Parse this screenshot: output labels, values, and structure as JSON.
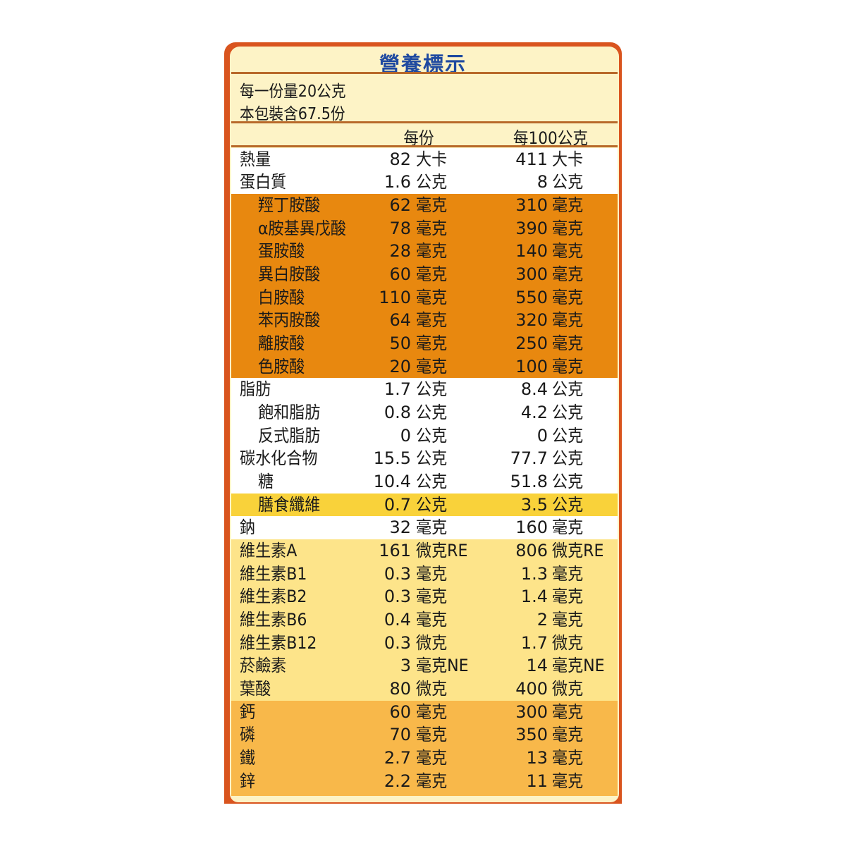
{
  "title": "營養標示",
  "serving_size": "每一份量20公克",
  "servings_per_package": "本包裝含67.5份",
  "columns": {
    "per_serving": "每份",
    "per_100g": "每100公克"
  },
  "colors": {
    "frame": "#d9541e",
    "background": "#fdf3c6",
    "title": "#1f4aa0",
    "amino_band": "#e8880f",
    "fiber_band": "#f9d23a",
    "vitamin_band": "#fde48a",
    "mineral_band": "#f8b84a",
    "white_band": "#ffffff"
  },
  "rows": [
    {
      "name": "熱量",
      "indent": false,
      "per_serving": "82",
      "unit1": "大卡",
      "per_100g": "411",
      "unit2": "大卡"
    },
    {
      "name": "蛋白質",
      "indent": false,
      "per_serving": "1.6",
      "unit1": "公克",
      "per_100g": "8",
      "unit2": "公克"
    },
    {
      "name": "羥丁胺酸",
      "indent": true,
      "per_serving": "62",
      "unit1": "毫克",
      "per_100g": "310",
      "unit2": "毫克"
    },
    {
      "name": "α胺基異戊酸",
      "indent": true,
      "per_serving": "78",
      "unit1": "毫克",
      "per_100g": "390",
      "unit2": "毫克"
    },
    {
      "name": "蛋胺酸",
      "indent": true,
      "per_serving": "28",
      "unit1": "毫克",
      "per_100g": "140",
      "unit2": "毫克"
    },
    {
      "name": "異白胺酸",
      "indent": true,
      "per_serving": "60",
      "unit1": "毫克",
      "per_100g": "300",
      "unit2": "毫克"
    },
    {
      "name": "白胺酸",
      "indent": true,
      "per_serving": "110",
      "unit1": "毫克",
      "per_100g": "550",
      "unit2": "毫克"
    },
    {
      "name": "苯丙胺酸",
      "indent": true,
      "per_serving": "64",
      "unit1": "毫克",
      "per_100g": "320",
      "unit2": "毫克"
    },
    {
      "name": "離胺酸",
      "indent": true,
      "per_serving": "50",
      "unit1": "毫克",
      "per_100g": "250",
      "unit2": "毫克"
    },
    {
      "name": "色胺酸",
      "indent": true,
      "per_serving": "20",
      "unit1": "毫克",
      "per_100g": "100",
      "unit2": "毫克"
    },
    {
      "name": "脂肪",
      "indent": false,
      "per_serving": "1.7",
      "unit1": "公克",
      "per_100g": "8.4",
      "unit2": "公克"
    },
    {
      "name": "飽和脂肪",
      "indent": true,
      "per_serving": "0.8",
      "unit1": "公克",
      "per_100g": "4.2",
      "unit2": "公克"
    },
    {
      "name": "反式脂肪",
      "indent": true,
      "per_serving": "0",
      "unit1": "公克",
      "per_100g": "0",
      "unit2": "公克"
    },
    {
      "name": "碳水化合物",
      "indent": false,
      "per_serving": "15.5",
      "unit1": "公克",
      "per_100g": "77.7",
      "unit2": "公克"
    },
    {
      "name": "糖",
      "indent": true,
      "per_serving": "10.4",
      "unit1": "公克",
      "per_100g": "51.8",
      "unit2": "公克"
    },
    {
      "name": "膳食纖維",
      "indent": true,
      "per_serving": "0.7",
      "unit1": "公克",
      "per_100g": "3.5",
      "unit2": "公克"
    },
    {
      "name": "鈉",
      "indent": false,
      "per_serving": "32",
      "unit1": "毫克",
      "per_100g": "160",
      "unit2": "毫克"
    },
    {
      "name": "維生素A",
      "indent": false,
      "per_serving": "161",
      "unit1": "微克RE",
      "per_100g": "806",
      "unit2": "微克RE"
    },
    {
      "name": "維生素B1",
      "indent": false,
      "per_serving": "0.3",
      "unit1": "毫克",
      "per_100g": "1.3",
      "unit2": "毫克"
    },
    {
      "name": "維生素B2",
      "indent": false,
      "per_serving": "0.3",
      "unit1": "毫克",
      "per_100g": "1.4",
      "unit2": "毫克"
    },
    {
      "name": "維生素B6",
      "indent": false,
      "per_serving": "0.4",
      "unit1": "毫克",
      "per_100g": "2",
      "unit2": "毫克"
    },
    {
      "name": "維生素B12",
      "indent": false,
      "per_serving": "0.3",
      "unit1": "微克",
      "per_100g": "1.7",
      "unit2": "微克"
    },
    {
      "name": "菸鹼素",
      "indent": false,
      "per_serving": "3",
      "unit1": "毫克NE",
      "per_100g": "14",
      "unit2": "毫克NE"
    },
    {
      "name": "葉酸",
      "indent": false,
      "per_serving": "80",
      "unit1": "微克",
      "per_100g": "400",
      "unit2": "微克"
    },
    {
      "name": "鈣",
      "indent": false,
      "per_serving": "60",
      "unit1": "毫克",
      "per_100g": "300",
      "unit2": "毫克"
    },
    {
      "name": "磷",
      "indent": false,
      "per_serving": "70",
      "unit1": "毫克",
      "per_100g": "350",
      "unit2": "毫克"
    },
    {
      "name": "鐵",
      "indent": false,
      "per_serving": "2.7",
      "unit1": "毫克",
      "per_100g": "13",
      "unit2": "毫克"
    },
    {
      "name": "鋅",
      "indent": false,
      "per_serving": "2.2",
      "unit1": "毫克",
      "per_100g": "11",
      "unit2": "毫克"
    }
  ]
}
